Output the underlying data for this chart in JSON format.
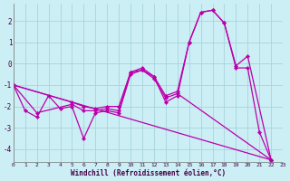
{
  "xlabel": "Windchill (Refroidissement éolien,°C)",
  "background_color": "#cceef5",
  "grid_color": "#a8d4dc",
  "line_color": "#bb00aa",
  "xlim": [
    0,
    23
  ],
  "ylim": [
    -4.6,
    2.8
  ],
  "yticks": [
    -4,
    -3,
    -2,
    -1,
    0,
    1,
    2
  ],
  "xticks": [
    0,
    1,
    2,
    3,
    4,
    5,
    6,
    7,
    8,
    9,
    10,
    11,
    12,
    13,
    14,
    15,
    16,
    17,
    18,
    19,
    20,
    21,
    22,
    23
  ],
  "series": [
    {
      "x": [
        0,
        1,
        2,
        3,
        4,
        5,
        6,
        7,
        8,
        9,
        10,
        11,
        12,
        13,
        14,
        15,
        16,
        17,
        18,
        19,
        20,
        21,
        22
      ],
      "y": [
        -1.0,
        -2.2,
        -2.5,
        -1.5,
        -2.1,
        -2.0,
        -3.5,
        -2.3,
        -2.2,
        -2.3,
        -0.5,
        -0.3,
        -0.6,
        -1.8,
        -1.5,
        1.0,
        2.4,
        2.5,
        1.9,
        -0.2,
        -0.2,
        -3.2,
        -4.5
      ]
    },
    {
      "x": [
        0,
        2,
        5,
        6,
        7,
        8,
        9,
        10,
        11,
        12,
        13,
        14,
        22
      ],
      "y": [
        -1.0,
        -2.3,
        -1.9,
        -2.2,
        -2.2,
        -2.1,
        -2.2,
        -0.4,
        -0.3,
        -0.7,
        -1.6,
        -1.4,
        -4.5
      ]
    },
    {
      "x": [
        0,
        22
      ],
      "y": [
        -1.0,
        -4.5
      ]
    },
    {
      "x": [
        0,
        5,
        6,
        7,
        8,
        9,
        10,
        11,
        12,
        13,
        14,
        15,
        16,
        17,
        18,
        19,
        20,
        22
      ],
      "y": [
        -1.0,
        -1.8,
        -2.0,
        -2.1,
        -2.0,
        -2.0,
        -0.4,
        -0.2,
        -0.6,
        -1.5,
        -1.3,
        1.0,
        2.4,
        2.5,
        1.9,
        -0.1,
        0.35,
        -4.5
      ]
    }
  ]
}
